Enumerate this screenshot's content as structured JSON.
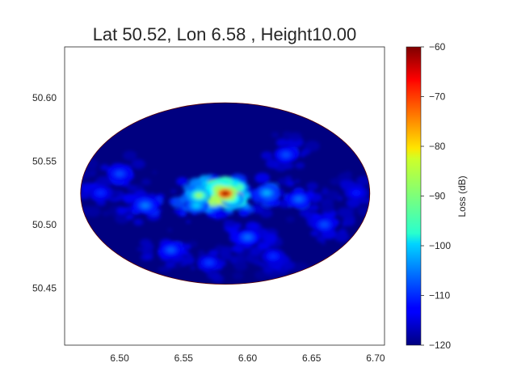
{
  "chart_data": {
    "type": "heatmap",
    "title": "Lat 50.52, Lon 6.58 , Height10.00",
    "xlabel": "",
    "ylabel": "",
    "xlim": [
      6.457,
      6.707
    ],
    "ylim": [
      50.405,
      50.64
    ],
    "x_ticks": [
      6.5,
      6.55,
      6.6,
      6.65,
      6.7
    ],
    "x_tick_labels": [
      "6.50",
      "6.55",
      "6.60",
      "6.65",
      "6.70"
    ],
    "y_ticks": [
      50.45,
      50.5,
      50.55,
      50.6
    ],
    "y_tick_labels": [
      "50.45",
      "50.50",
      "50.55",
      "50.60"
    ],
    "grid": false,
    "colormap": "jet",
    "colorbar": {
      "label": "Loss (dB)",
      "min": -120,
      "max": -60,
      "ticks": [
        -60,
        -70,
        -80,
        -90,
        -100,
        -110,
        -120
      ],
      "tick_labels": [
        "−60",
        "−70",
        "−80",
        "−90",
        "−100",
        "−110",
        "−120"
      ]
    },
    "coverage_region": {
      "shape": "ellipse",
      "center": [
        6.5825,
        50.5245
      ],
      "lon_radius": 0.113,
      "lat_radius": 0.0715,
      "background_value": -120
    },
    "hotspots": [
      {
        "lon": 6.5825,
        "lat": 50.5245,
        "peak_db": -62
      },
      {
        "lon": 6.578,
        "lat": 50.528,
        "peak_db": -80
      },
      {
        "lon": 6.562,
        "lat": 50.523,
        "peak_db": -88
      },
      {
        "lon": 6.588,
        "lat": 50.52,
        "peak_db": -92
      },
      {
        "lon": 6.56,
        "lat": 50.515,
        "peak_db": -100
      },
      {
        "lon": 6.615,
        "lat": 50.525,
        "peak_db": -102
      },
      {
        "lon": 6.52,
        "lat": 50.515,
        "peak_db": -105
      },
      {
        "lon": 6.64,
        "lat": 50.52,
        "peak_db": -106
      },
      {
        "lon": 6.54,
        "lat": 50.48,
        "peak_db": -107
      },
      {
        "lon": 6.6,
        "lat": 50.49,
        "peak_db": -106
      },
      {
        "lon": 6.63,
        "lat": 50.555,
        "peak_db": -108
      },
      {
        "lon": 6.5,
        "lat": 50.54,
        "peak_db": -108
      },
      {
        "lon": 6.66,
        "lat": 50.5,
        "peak_db": -108
      },
      {
        "lon": 6.57,
        "lat": 50.47,
        "peak_db": -109
      },
      {
        "lon": 6.62,
        "lat": 50.475,
        "peak_db": -110
      },
      {
        "lon": 6.485,
        "lat": 50.525,
        "peak_db": -110
      },
      {
        "lon": 6.685,
        "lat": 50.525,
        "peak_db": -111
      }
    ]
  }
}
